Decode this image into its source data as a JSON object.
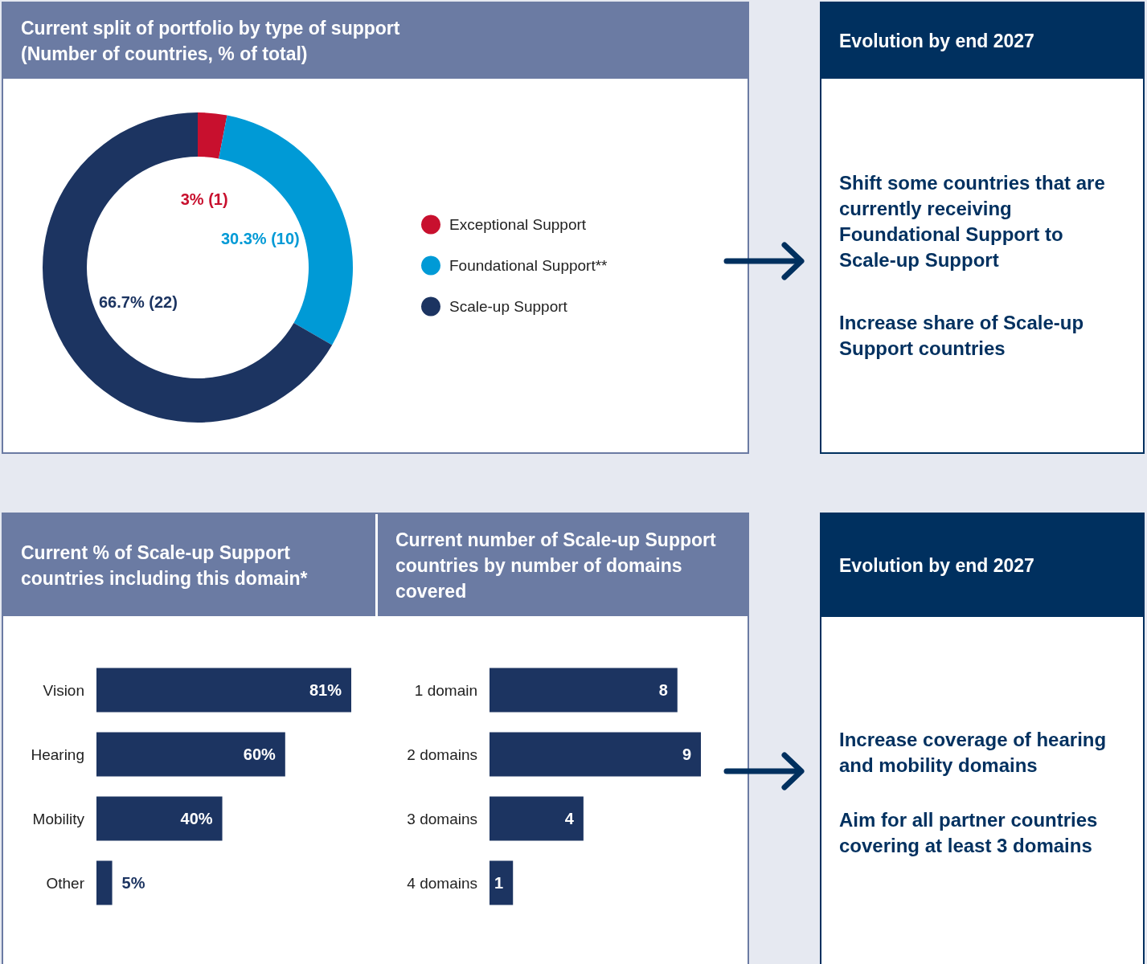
{
  "chart_data": [
    {
      "type": "donut",
      "title": "Current split of portfolio by type of support (Number of countries, % of total)",
      "categories": [
        "Exceptional Support",
        "Foundational Support**",
        "Scale-up Support"
      ],
      "values": [
        1,
        10,
        22
      ],
      "colors": [
        "#c8102e",
        "#009ad6",
        "#1c3461"
      ],
      "value_labels": [
        "3% (1)",
        "30.3% (10)",
        "66.7% (22)"
      ],
      "legend": "right"
    },
    {
      "type": "other",
      "title": "Evolution by end 2027",
      "annotations": [
        "Shift some countries that are currently receiving Foundational Support to Scale-up Support",
        "Increase share of Scale-up Support countries"
      ]
    },
    {
      "type": "bar",
      "orientation": "horizontal",
      "title": "Current % of Scale-up Support countries including this domain*",
      "categories": [
        "Vision",
        "Hearing",
        "Mobility",
        "Other"
      ],
      "values": [
        81,
        60,
        40,
        5
      ],
      "color": "#1c3461",
      "value_labels": [
        "81%",
        "60%",
        "40%",
        "5%"
      ]
    },
    {
      "type": "bar",
      "orientation": "horizontal",
      "title": "Current number of Scale-up Support countries by number of domains covered",
      "categories": [
        "1 domain",
        "2 domains",
        "3 domains",
        "4 domains"
      ],
      "values": [
        8,
        9,
        4,
        1
      ],
      "color": "#1c3461",
      "data_labels": true
    },
    {
      "type": "other",
      "title": "Evolution by end 2027",
      "annotations": [
        "Increase coverage of hearing and mobility domains",
        "Aim for all partner countries covering at least 3 domains"
      ]
    }
  ]
}
